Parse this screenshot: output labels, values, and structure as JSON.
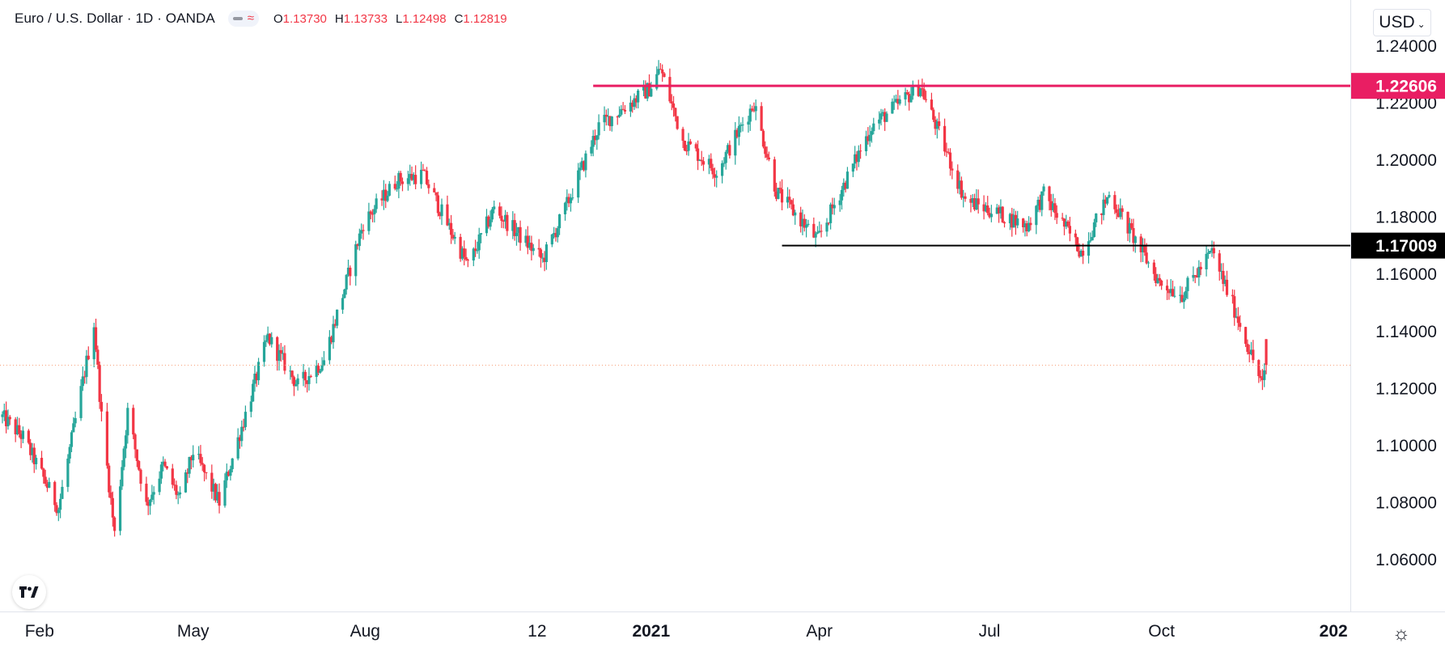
{
  "legend": {
    "title": "Euro / U.S. Dollar · 1D · OANDA",
    "ohlc": [
      {
        "k": "O",
        "v": "1.13730"
      },
      {
        "k": "H",
        "v": "1.13733"
      },
      {
        "k": "L",
        "v": "1.12498"
      },
      {
        "k": "C",
        "v": "1.12819"
      }
    ]
  },
  "currency_button": "USD",
  "colors": {
    "up": "#26a69a",
    "down": "#f23645",
    "resistance": "#e91e63",
    "support": "#000000",
    "current_price": "#f7a17b",
    "axis_text": "#131722"
  },
  "icons": {
    "logo": "tradingview-logo-icon",
    "settings": "gear-icon",
    "currency_chevron": "chevron-down-icon"
  },
  "chart_data": {
    "type": "candlestick",
    "instrument": "Euro / U.S. Dollar",
    "interval": "1D",
    "source": "OANDA",
    "currency": "USD",
    "ylim": [
      1.047,
      1.255
    ],
    "y_ticks": [
      "1.24000",
      "1.22000",
      "1.20000",
      "1.18000",
      "1.16000",
      "1.14000",
      "1.12000",
      "1.10000",
      "1.08000",
      "1.06000"
    ],
    "y_tick_values": [
      1.24,
      1.22,
      1.2,
      1.18,
      1.16,
      1.14,
      1.12,
      1.1,
      1.08,
      1.06
    ],
    "x_range": [
      "2020-01-20",
      "2022-01-10"
    ],
    "x_ticks": [
      {
        "label": "Feb",
        "date": "2020-02-01",
        "bold": false
      },
      {
        "label": "May",
        "date": "2020-05-01",
        "bold": false
      },
      {
        "label": "Aug",
        "date": "2020-08-01",
        "bold": false
      },
      {
        "label": "12",
        "date": "2020-11-01",
        "bold": false
      },
      {
        "label": "2021",
        "date": "2021-01-01",
        "bold": true
      },
      {
        "label": "Apr",
        "date": "2021-04-01",
        "bold": false
      },
      {
        "label": "Jul",
        "date": "2021-07-01",
        "bold": false
      },
      {
        "label": "Oct",
        "date": "2021-10-01",
        "bold": false
      },
      {
        "label": "202",
        "date": "2022-01-01",
        "bold": true
      }
    ],
    "price_path": [
      [
        "2020-01-20",
        1.11
      ],
      [
        "2020-01-31",
        1.103
      ],
      [
        "2020-02-19",
        1.078
      ],
      [
        "2020-03-09",
        1.143
      ],
      [
        "2020-03-13",
        1.11
      ],
      [
        "2020-03-20",
        1.069
      ],
      [
        "2020-03-27",
        1.112
      ],
      [
        "2020-04-06",
        1.079
      ],
      [
        "2020-04-15",
        1.093
      ],
      [
        "2020-04-24",
        1.081
      ],
      [
        "2020-05-01",
        1.098
      ],
      [
        "2020-05-15",
        1.08
      ],
      [
        "2020-05-29",
        1.111
      ],
      [
        "2020-06-10",
        1.138
      ],
      [
        "2020-06-26",
        1.121
      ],
      [
        "2020-07-10",
        1.13
      ],
      [
        "2020-07-31",
        1.178
      ],
      [
        "2020-08-18",
        1.193
      ],
      [
        "2020-09-01",
        1.195
      ],
      [
        "2020-09-25",
        1.163
      ],
      [
        "2020-10-09",
        1.183
      ],
      [
        "2020-11-04",
        1.165
      ],
      [
        "2020-11-18",
        1.186
      ],
      [
        "2020-12-04",
        1.212
      ],
      [
        "2020-12-31",
        1.225
      ],
      [
        "2021-01-06",
        1.232
      ],
      [
        "2021-01-18",
        1.207
      ],
      [
        "2021-02-05",
        1.196
      ],
      [
        "2021-02-25",
        1.22
      ],
      [
        "2021-03-09",
        1.189
      ],
      [
        "2021-03-31",
        1.172
      ],
      [
        "2021-04-29",
        1.212
      ],
      [
        "2021-05-25",
        1.226
      ],
      [
        "2021-06-18",
        1.186
      ],
      [
        "2021-07-07",
        1.181
      ],
      [
        "2021-07-21",
        1.177
      ],
      [
        "2021-07-30",
        1.188
      ],
      [
        "2021-08-19",
        1.168
      ],
      [
        "2021-09-03",
        1.188
      ],
      [
        "2021-09-30",
        1.157
      ],
      [
        "2021-10-12",
        1.153
      ],
      [
        "2021-10-28",
        1.168
      ],
      [
        "2021-11-10",
        1.146
      ],
      [
        "2021-11-24",
        1.121
      ],
      [
        "2021-11-26",
        1.128
      ]
    ],
    "last_candle": {
      "date": "2021-11-26",
      "open": 1.1373,
      "high": 1.13733,
      "low": 1.12498,
      "close": 1.12819
    },
    "horizontal_lines": [
      {
        "name": "resistance",
        "value": 1.22606,
        "label": "1.22606",
        "start": "2020-12-01"
      },
      {
        "name": "support",
        "value": 1.17009,
        "label": "1.17009",
        "start": "2021-03-12"
      }
    ],
    "current_price_line": 1.12819,
    "grid": false,
    "legend_position": "top-left"
  }
}
